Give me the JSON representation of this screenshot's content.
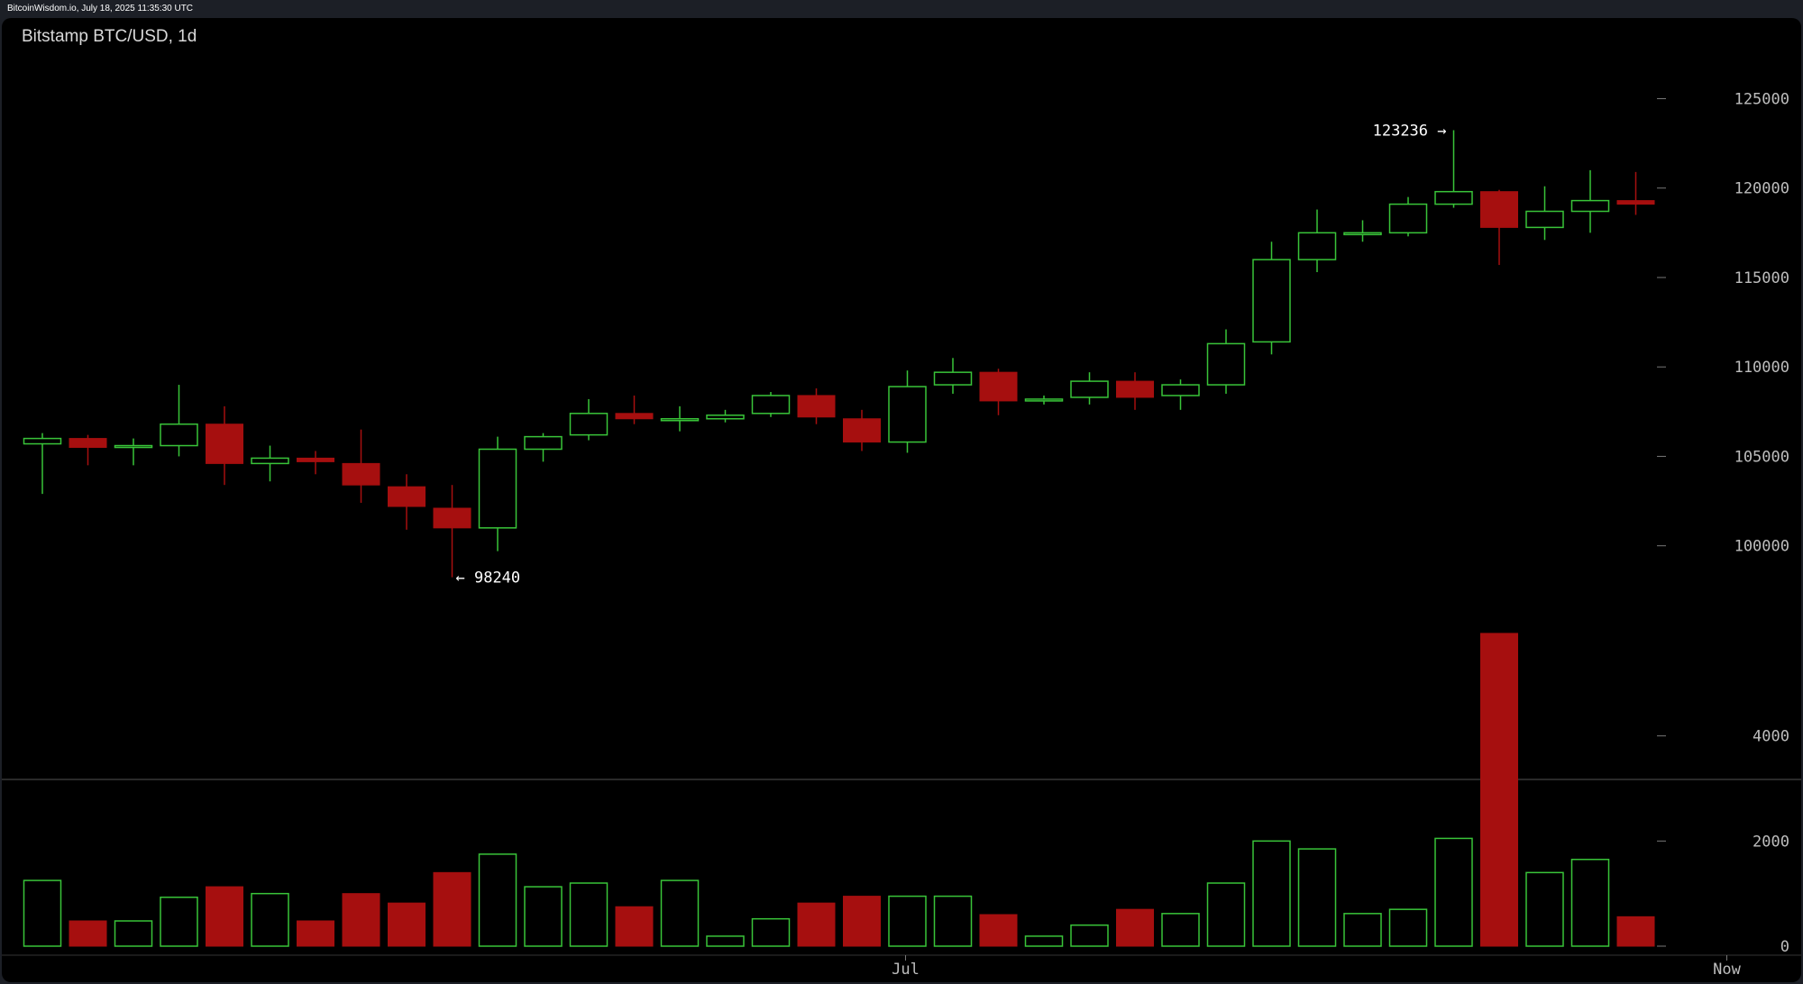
{
  "header": {
    "source_line": "BitcoinWisdom.io, July 18, 2025 11:35:30 UTC"
  },
  "chart_data": {
    "type": "candlestick",
    "title": "Bitstamp BTC/USD, 1d",
    "price_axis": {
      "ticks": [
        "125000",
        "120000",
        "115000",
        "110000",
        "105000",
        "100000"
      ],
      "tick_values": [
        125000,
        120000,
        115000,
        110000,
        105000,
        100000
      ],
      "ylim": [
        95500,
        128500
      ]
    },
    "volume_axis": {
      "ticks": [
        "4000",
        "2000",
        "0"
      ],
      "tick_values": [
        4000,
        2000,
        0
      ],
      "ylim": [
        0,
        6000
      ]
    },
    "x_labels": [
      {
        "text": "Jul",
        "index": 19
      },
      {
        "text": "Now",
        "index": 37
      }
    ],
    "annotations": [
      {
        "text": "123236 →",
        "index": 31,
        "value": 123236,
        "side": "left"
      },
      {
        "text": "← 98240",
        "index": 9,
        "value": 98240,
        "side": "right"
      }
    ],
    "up_color": "#39c439",
    "down_color": "#a60f0f",
    "candles": [
      {
        "o": 105700,
        "h": 106300,
        "l": 102900,
        "c": 106000,
        "v": 1250
      },
      {
        "o": 106000,
        "h": 106200,
        "l": 104500,
        "c": 105500,
        "v": 480
      },
      {
        "o": 105500,
        "h": 106000,
        "l": 104500,
        "c": 105600,
        "v": 480
      },
      {
        "o": 105600,
        "h": 109000,
        "l": 105000,
        "c": 106800,
        "v": 930
      },
      {
        "o": 106800,
        "h": 107800,
        "l": 103400,
        "c": 104600,
        "v": 1130
      },
      {
        "o": 104600,
        "h": 105600,
        "l": 103600,
        "c": 104900,
        "v": 1000
      },
      {
        "o": 104900,
        "h": 105300,
        "l": 104000,
        "c": 104700,
        "v": 480
      },
      {
        "o": 104600,
        "h": 106500,
        "l": 102400,
        "c": 103400,
        "v": 1000
      },
      {
        "o": 103300,
        "h": 104000,
        "l": 100900,
        "c": 102200,
        "v": 820
      },
      {
        "o": 102100,
        "h": 103400,
        "l": 98240,
        "c": 101000,
        "v": 1400
      },
      {
        "o": 101000,
        "h": 106100,
        "l": 99700,
        "c": 105400,
        "v": 1750
      },
      {
        "o": 105400,
        "h": 106300,
        "l": 104700,
        "c": 106100,
        "v": 1130
      },
      {
        "o": 106200,
        "h": 108200,
        "l": 105900,
        "c": 107400,
        "v": 1200
      },
      {
        "o": 107400,
        "h": 108400,
        "l": 106800,
        "c": 107100,
        "v": 750
      },
      {
        "o": 107100,
        "h": 107800,
        "l": 106400,
        "c": 107100,
        "v": 1250
      },
      {
        "o": 107100,
        "h": 107600,
        "l": 106900,
        "c": 107300,
        "v": 190
      },
      {
        "o": 107400,
        "h": 108600,
        "l": 107200,
        "c": 108400,
        "v": 520
      },
      {
        "o": 108400,
        "h": 108800,
        "l": 106800,
        "c": 107200,
        "v": 820
      },
      {
        "o": 107100,
        "h": 107600,
        "l": 105300,
        "c": 105800,
        "v": 950
      },
      {
        "o": 105800,
        "h": 109800,
        "l": 105200,
        "c": 108900,
        "v": 950
      },
      {
        "o": 109000,
        "h": 110500,
        "l": 108500,
        "c": 109700,
        "v": 950
      },
      {
        "o": 109700,
        "h": 109900,
        "l": 107300,
        "c": 108100,
        "v": 600
      },
      {
        "o": 108100,
        "h": 108400,
        "l": 107900,
        "c": 108200,
        "v": 190
      },
      {
        "o": 108300,
        "h": 109700,
        "l": 107900,
        "c": 109200,
        "v": 400
      },
      {
        "o": 109200,
        "h": 109700,
        "l": 107600,
        "c": 108300,
        "v": 700
      },
      {
        "o": 108400,
        "h": 109300,
        "l": 107600,
        "c": 109000,
        "v": 620
      },
      {
        "o": 109000,
        "h": 112100,
        "l": 108500,
        "c": 111300,
        "v": 1200
      },
      {
        "o": 111400,
        "h": 117000,
        "l": 110700,
        "c": 116000,
        "v": 2000
      },
      {
        "o": 116000,
        "h": 118800,
        "l": 115300,
        "c": 117500,
        "v": 1850
      },
      {
        "o": 117500,
        "h": 118200,
        "l": 117000,
        "c": 117500,
        "v": 620
      },
      {
        "o": 117500,
        "h": 119500,
        "l": 117300,
        "c": 119100,
        "v": 700
      },
      {
        "o": 119100,
        "h": 123236,
        "l": 118900,
        "c": 119800,
        "v": 2050
      },
      {
        "o": 119800,
        "h": 119900,
        "l": 115700,
        "c": 117800,
        "v": 5950
      },
      {
        "o": 117800,
        "h": 120100,
        "l": 117100,
        "c": 118700,
        "v": 1400
      },
      {
        "o": 118700,
        "h": 121000,
        "l": 117500,
        "c": 119300,
        "v": 1650
      },
      {
        "o": 119300,
        "h": 120900,
        "l": 118500,
        "c": 119100,
        "v": 560
      }
    ]
  }
}
